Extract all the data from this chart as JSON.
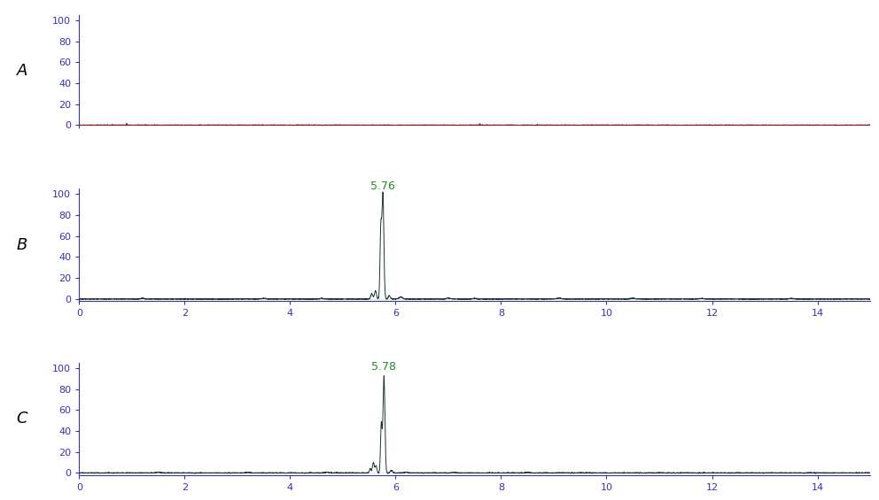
{
  "panel_labels": [
    "A",
    "B",
    "C"
  ],
  "xlim": [
    0,
    15
  ],
  "ylim": [
    -2,
    105
  ],
  "yticks": [
    0,
    20,
    40,
    60,
    80,
    100
  ],
  "xticks": [
    0,
    2,
    4,
    6,
    8,
    10,
    12,
    14
  ],
  "peak_B_time": 5.76,
  "peak_B_label": "5.76",
  "peak_C_time": 5.78,
  "peak_C_label": "5.78",
  "line_color_A": "#8B1A1A",
  "line_color_BC": "#1a3535",
  "axis_color": "#3333aa",
  "peak_label_color": "#228B22",
  "background_color": "#ffffff",
  "figsize": [
    9.92,
    5.65
  ],
  "dpi": 100
}
